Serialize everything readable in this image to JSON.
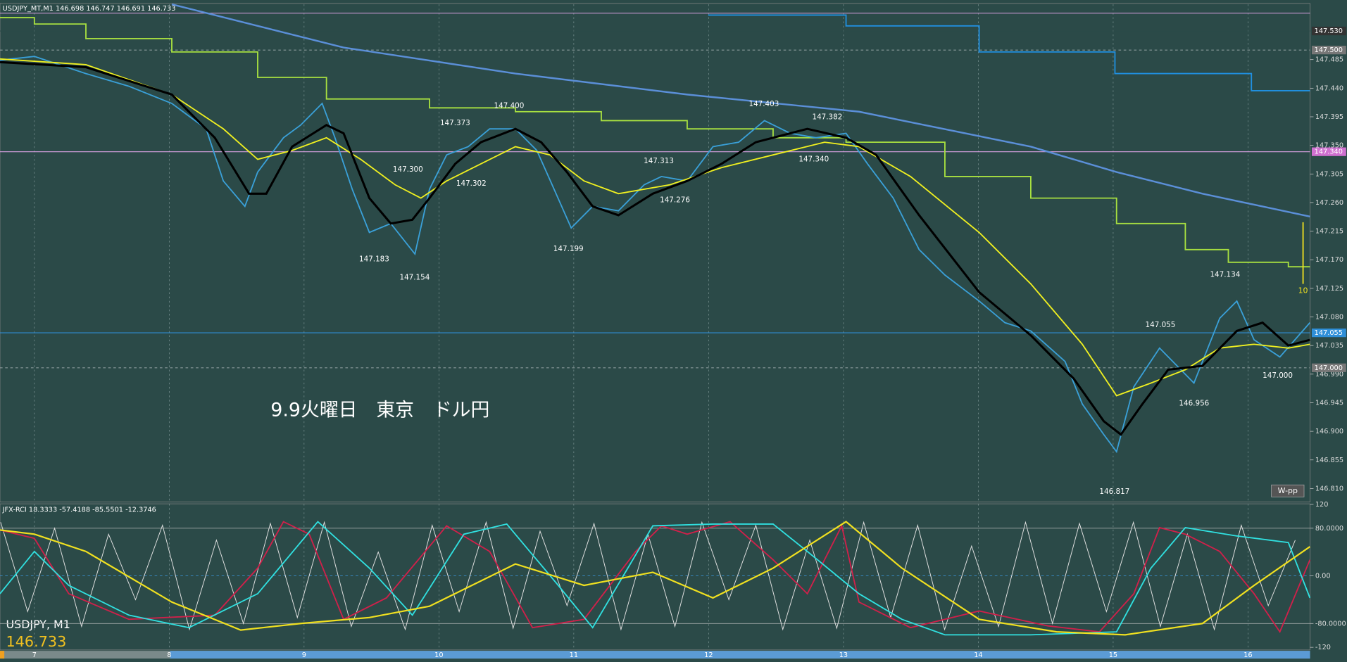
{
  "chart_data": [
    {
      "type": "line",
      "title": "USDJPY_MT,M1  146.698 146.747 146.691 146.733",
      "annotation_text": "9.9火曜日　東京　ドル円",
      "symbol_label": "USDJPY, M1",
      "last_price": 146.733,
      "button": "W-pp",
      "grid": "x",
      "xlim": [
        6.745,
        16.46
      ],
      "xticks": [
        7,
        8,
        9,
        10,
        11,
        12,
        13,
        14,
        15,
        16
      ],
      "ylim": [
        146.79,
        147.572
      ],
      "yticks": [
        147.485,
        {
          "value": 147.44,
          "label": "147.440"
        },
        147.395,
        {
          "value": 147.35,
          "label": "147.350"
        },
        147.305,
        {
          "value": 147.26,
          "label": "147.260"
        },
        147.215,
        {
          "value": 147.17,
          "label": "147.170"
        },
        147.125,
        {
          "value": 147.08,
          "label": "147.080"
        },
        147.035,
        {
          "value": 146.99,
          "label": "146.990"
        },
        146.945,
        {
          "value": 146.9,
          "label": "146.900"
        },
        146.855,
        {
          "value": 146.81,
          "label": "146.810"
        }
      ],
      "hlines": [
        {
          "value": 147.558,
          "color": "#d8a0e0"
        },
        {
          "value": 147.53,
          "label": "147.530",
          "color": "#2b4a48",
          "label_bg": "#333333"
        },
        {
          "value": 147.5,
          "label": "147.500",
          "color": "#8a9a9a",
          "label_bg": "#777777",
          "dash": true
        },
        {
          "value": 147.34,
          "label": "147.340",
          "color": "#d8a0e0",
          "label_bg": "#d070d0"
        },
        {
          "value": 147.055,
          "label": "147.055",
          "color": "#2f8fd8",
          "label_bg": "#2f8fd8"
        },
        {
          "value": 147.0,
          "label": "147.000",
          "color": "#8a9a9a",
          "label_bg": "#777777",
          "dash": true
        }
      ],
      "series": [
        {
          "color": "#5b8fd8",
          "width": 2,
          "x": [
            8.019,
            9.293,
            10.567,
            11.841,
            13.115,
            14.389,
            15.025,
            15.662,
            16.459
          ],
          "values": [
            147.572,
            147.504,
            147.463,
            147.43,
            147.403,
            147.348,
            147.308,
            147.274,
            147.238
          ]
        },
        {
          "color": "#a8e040",
          "width": 1.5,
          "step": true,
          "x": [
            6.745,
            7,
            7.382,
            8.019,
            8.656,
            9.166,
            9.93,
            10.567,
            11.204,
            11.841,
            12.478,
            13.019,
            13.752,
            14.389,
            15.025,
            15.535,
            15.854,
            16.299,
            16.459
          ],
          "values": [
            147.551,
            147.541,
            147.518,
            147.497,
            147.457,
            147.423,
            147.409,
            147.403,
            147.389,
            147.376,
            147.362,
            147.355,
            147.301,
            147.267,
            147.227,
            147.186,
            147.166,
            147.159,
            147.159
          ]
        },
        {
          "color": "#2090e0",
          "width": 1.5,
          "step": true,
          "x": [
            11.997,
            13.019,
            14.006,
            15.013,
            16.025,
            16.459
          ],
          "values": [
            147.555,
            147.538,
            147.497,
            147.463,
            147.436,
            147.436
          ]
        },
        {
          "color": "#3aa0d8",
          "width": 1.5,
          "x": [
            6.745,
            7,
            7.382,
            7.701,
            8.019,
            8.274,
            8.401,
            8.561,
            8.656,
            8.847,
            8.975,
            9.134,
            9.229,
            9.357,
            9.484,
            9.643,
            9.822,
            9.93,
            10.057,
            10.217,
            10.376,
            10.567,
            10.726,
            10.854,
            10.981,
            11.14,
            11.331,
            11.522,
            11.65,
            11.841,
            12.032,
            12.223,
            12.414,
            12.605,
            12.796,
            13.019,
            13.178,
            13.369,
            13.561,
            13.752,
            14.006,
            14.197,
            14.389,
            14.643,
            14.771,
            14.93,
            15.025,
            15.153,
            15.344,
            15.599,
            15.79,
            15.917,
            16.045,
            16.236,
            16.459
          ],
          "values": [
            147.484,
            147.49,
            147.463,
            147.443,
            147.416,
            147.376,
            147.294,
            147.254,
            147.308,
            147.362,
            147.382,
            147.416,
            147.362,
            147.281,
            147.213,
            147.227,
            147.179,
            147.281,
            147.335,
            147.348,
            147.376,
            147.376,
            147.342,
            147.281,
            147.22,
            147.254,
            147.247,
            147.288,
            147.301,
            147.294,
            147.348,
            147.355,
            147.389,
            147.369,
            147.362,
            147.369,
            147.321,
            147.267,
            147.186,
            147.146,
            147.105,
            147.071,
            147.058,
            147.01,
            146.943,
            146.895,
            146.868,
            146.97,
            147.031,
            146.976,
            147.078,
            147.105,
            147.044,
            147.017,
            147.071
          ]
        },
        {
          "color": "#f0f020",
          "width": 1.5,
          "x": [
            6.745,
            7.382,
            8.019,
            8.401,
            8.656,
            8.911,
            9.166,
            9.42,
            9.675,
            9.866,
            10.057,
            10.312,
            10.567,
            10.822,
            11.076,
            11.331,
            11.713,
            12.096,
            12.478,
            12.86,
            13.115,
            13.497,
            14.006,
            14.389,
            14.771,
            15.025,
            15.28,
            15.535,
            15.79,
            16.045,
            16.299,
            16.459
          ],
          "values": [
            147.486,
            147.477,
            147.43,
            147.376,
            147.328,
            147.342,
            147.362,
            147.328,
            147.288,
            147.267,
            147.294,
            147.321,
            147.348,
            147.335,
            147.294,
            147.274,
            147.288,
            147.315,
            147.335,
            147.355,
            147.348,
            147.301,
            147.213,
            147.132,
            147.037,
            146.956,
            146.976,
            146.997,
            147.031,
            147.037,
            147.031,
            147.037
          ]
        },
        {
          "color": "#000000",
          "width": 2.5,
          "x": [
            6.745,
            7.382,
            8.019,
            8.338,
            8.592,
            8.72,
            8.911,
            9.166,
            9.293,
            9.484,
            9.643,
            9.803,
            9.93,
            10.121,
            10.312,
            10.567,
            10.758,
            10.949,
            11.14,
            11.331,
            11.586,
            11.841,
            12.096,
            12.35,
            12.732,
            13.019,
            13.242,
            13.561,
            14.006,
            14.389,
            14.707,
            14.93,
            15.057,
            15.217,
            15.408,
            15.662,
            15.917,
            16.108,
            16.299,
            16.459
          ],
          "values": [
            147.481,
            147.473,
            147.43,
            147.362,
            147.274,
            147.274,
            147.348,
            147.382,
            147.369,
            147.267,
            147.227,
            147.233,
            147.267,
            147.321,
            147.355,
            147.376,
            147.355,
            147.308,
            147.254,
            147.24,
            147.274,
            147.294,
            147.321,
            147.355,
            147.376,
            147.362,
            147.335,
            147.24,
            147.119,
            147.051,
            146.983,
            146.916,
            146.895,
            146.943,
            146.997,
            147.003,
            147.058,
            147.071,
            147.035,
            147.044
          ]
        }
      ],
      "annotations": [
        {
          "x": 9.52,
          "y": 147.183,
          "label": "147.183",
          "position": "below"
        },
        {
          "x": 9.82,
          "y": 147.154,
          "label": "147.154",
          "position": "below"
        },
        {
          "x": 9.77,
          "y": 147.3,
          "label": "147.300",
          "position": "above"
        },
        {
          "x": 10.12,
          "y": 147.373,
          "label": "147.373",
          "position": "above"
        },
        {
          "x": 10.24,
          "y": 147.302,
          "label": "147.302",
          "position": "below"
        },
        {
          "x": 10.52,
          "y": 147.4,
          "label": "147.400",
          "position": "above"
        },
        {
          "x": 10.96,
          "y": 147.199,
          "label": "147.199",
          "position": "below"
        },
        {
          "x": 11.63,
          "y": 147.313,
          "label": "147.313",
          "position": "above"
        },
        {
          "x": 11.75,
          "y": 147.276,
          "label": "147.276",
          "position": "below"
        },
        {
          "x": 12.41,
          "y": 147.403,
          "label": "147.403",
          "position": "above"
        },
        {
          "x": 12.88,
          "y": 147.382,
          "label": "147.382",
          "position": "above"
        },
        {
          "x": 12.78,
          "y": 147.34,
          "label": "147.340",
          "position": "below"
        },
        {
          "x": 15.01,
          "y": 146.817,
          "label": "146.817",
          "position": "below"
        },
        {
          "x": 15.35,
          "y": 147.055,
          "label": "147.055",
          "position": "above"
        },
        {
          "x": 15.6,
          "y": 146.956,
          "label": "146.956",
          "position": "below"
        },
        {
          "x": 15.83,
          "y": 147.134,
          "label": "147.134",
          "position": "above"
        },
        {
          "x": 16.22,
          "y": 147.0,
          "label": "147.000",
          "position": "below"
        }
      ],
      "marker": {
        "x": 16.408,
        "from": 147.229,
        "to": 147.132,
        "label": "10",
        "color": "#f0e020"
      }
    },
    {
      "type": "line",
      "title": "JFX-RCI 18.3333 -57.4188 -85.5501 -12.3746",
      "xlim": [
        6.745,
        16.46
      ],
      "xticks": [
        7,
        8,
        9,
        10,
        11,
        12,
        13,
        14,
        15,
        16
      ],
      "ylim": [
        -123,
        121
      ],
      "yticks": [
        120,
        {
          "value": 80,
          "label": "80.0000"
        },
        {
          "value": 0,
          "label": "0.00"
        },
        {
          "value": -80,
          "label": "-80.0000"
        },
        -120
      ],
      "series": [
        {
          "color": "#e0e0e0",
          "width": 0.8,
          "x": [
            6.75,
            6.95,
            7.15,
            7.35,
            7.55,
            7.75,
            7.95,
            8.15,
            8.35,
            8.55,
            8.75,
            8.95,
            9.15,
            9.35,
            9.55,
            9.75,
            9.95,
            10.15,
            10.35,
            10.55,
            10.75,
            10.95,
            11.15,
            11.35,
            11.55,
            11.75,
            11.95,
            12.15,
            12.35,
            12.55,
            12.75,
            12.95,
            13.15,
            13.35,
            13.55,
            13.75,
            13.95,
            14.15,
            14.35,
            14.55,
            14.75,
            14.95,
            15.15,
            15.35,
            15.55,
            15.75,
            15.95,
            16.15,
            16.35
          ],
          "values": [
            90,
            -60,
            80,
            -85,
            70,
            -40,
            85,
            -90,
            60,
            -80,
            88,
            -70,
            90,
            -85,
            40,
            -90,
            85,
            -60,
            90,
            -88,
            75,
            -50,
            88,
            -90,
            70,
            -85,
            90,
            -40,
            85,
            -90,
            60,
            -88,
            90,
            -70,
            85,
            -90,
            50,
            -85,
            90,
            -80,
            88,
            -60,
            90,
            -85,
            70,
            -90,
            85,
            -50,
            60
          ]
        },
        {
          "color": "#d0204a",
          "width": 1.5,
          "x": [
            6.745,
            7,
            7.255,
            7.701,
            8.338,
            8.656,
            8.847,
            9.038,
            9.293,
            9.611,
            10.057,
            10.376,
            10.694,
            11.076,
            11.459,
            11.65,
            11.841,
            12.159,
            12.478,
            12.732,
            12.987,
            13.115,
            13.497,
            14.006,
            14.516,
            14.898,
            15.153,
            15.344,
            15.535,
            15.79,
            16.045,
            16.236,
            16.459
          ],
          "values": [
            77,
            63,
            -30,
            -73,
            -66,
            13,
            91,
            70,
            -73,
            -37,
            84,
            41,
            -87,
            -73,
            41,
            84,
            70,
            91,
            27,
            -30,
            84,
            -44,
            -87,
            -59,
            -84,
            -94,
            -30,
            81,
            70,
            41,
            -30,
            -94,
            27
          ]
        },
        {
          "color": "#30e0e0",
          "width": 1.5,
          "x": [
            6.745,
            7,
            7.255,
            7.701,
            8.146,
            8.656,
            9.102,
            9.484,
            9.803,
            10.185,
            10.503,
            10.885,
            11.14,
            11.586,
            12.032,
            12.478,
            12.732,
            13.115,
            13.433,
            13.752,
            14.389,
            15.025,
            15.28,
            15.535,
            15.917,
            16.299,
            16.459
          ],
          "values": [
            -30,
            41,
            -16,
            -66,
            -87,
            -30,
            91,
            13,
            -66,
            70,
            87,
            -16,
            -87,
            84,
            87,
            87,
            41,
            -30,
            -73,
            -99,
            -99,
            -94,
            13,
            81,
            67,
            56,
            -37
          ]
        },
        {
          "color": "#f0e020",
          "width": 1.8,
          "x": [
            6.745,
            7,
            7.382,
            8.019,
            8.53,
            8.975,
            9.484,
            9.93,
            10.567,
            11.076,
            11.586,
            12.032,
            12.478,
            13.019,
            13.433,
            14.006,
            14.58,
            15.089,
            15.662,
            16.045,
            16.459
          ],
          "values": [
            77,
            70,
            41,
            -44,
            -91,
            -80,
            -70,
            -51,
            20,
            -16,
            6,
            -37,
            13,
            91,
            13,
            -73,
            -94,
            -99,
            -80,
            -16,
            49
          ]
        }
      ]
    }
  ]
}
